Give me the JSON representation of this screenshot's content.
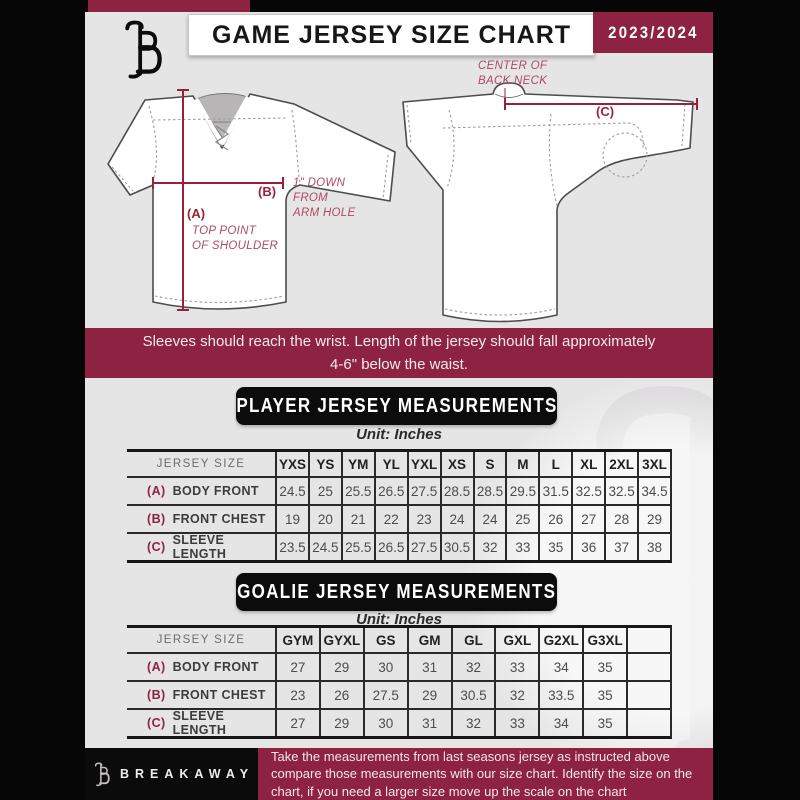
{
  "colors": {
    "accent_maroon": "#8d2242",
    "page_bg": "#e6e5e6",
    "frame_black": "#060606",
    "measure_line": "#9a1f38"
  },
  "header": {
    "title": "GAME JERSEY SIZE CHART",
    "season": "2023/2024",
    "logo": "breakaway-b-logo"
  },
  "diagrams": {
    "front": {
      "label_a": "(A)",
      "note_a": "TOP POINT\nOF SHOULDER",
      "label_b": "(B)",
      "note_b": "1\" DOWN\nFROM\nARM HOLE"
    },
    "back": {
      "label_c": "(C)",
      "note_c": "CENTER OF\nBACK NECK"
    }
  },
  "banner": "Sleeves should reach the wrist. Length of the jersey should fall approximately 4-6\" below the waist.",
  "player": {
    "title": "PLAYER JERSEY MEASUREMENTS",
    "unit": "Unit: Inches",
    "size_header": "JERSEY SIZE",
    "columns": [
      "YXS",
      "YS",
      "YM",
      "YL",
      "YXL",
      "XS",
      "S",
      "M",
      "L",
      "XL",
      "2XL",
      "3XL"
    ],
    "rows": [
      {
        "key": "(A)",
        "label": "BODY FRONT",
        "values": [
          "24.5",
          "25",
          "25.5",
          "26.5",
          "27.5",
          "28.5",
          "28.5",
          "29.5",
          "31.5",
          "32.5",
          "32.5",
          "34.5"
        ]
      },
      {
        "key": "(B)",
        "label": "FRONT CHEST",
        "values": [
          "19",
          "20",
          "21",
          "22",
          "23",
          "24",
          "24",
          "25",
          "26",
          "27",
          "28",
          "29"
        ]
      },
      {
        "key": "(C)",
        "label": "SLEEVE LENGTH",
        "values": [
          "23.5",
          "24.5",
          "25.5",
          "26.5",
          "27.5",
          "30.5",
          "32",
          "33",
          "35",
          "36",
          "37",
          "38"
        ]
      }
    ]
  },
  "goalie": {
    "title": "GOALIE JERSEY MEASUREMENTS",
    "unit": "Unit: Inches",
    "size_header": "JERSEY SIZE",
    "columns": [
      "GYM",
      "GYXL",
      "GS",
      "GM",
      "GL",
      "GXL",
      "G2XL",
      "G3XL",
      ""
    ],
    "rows": [
      {
        "key": "(A)",
        "label": "BODY FRONT",
        "values": [
          "27",
          "29",
          "30",
          "31",
          "32",
          "33",
          "34",
          "35",
          ""
        ]
      },
      {
        "key": "(B)",
        "label": "FRONT CHEST",
        "values": [
          "23",
          "26",
          "27.5",
          "29",
          "30.5",
          "32",
          "33.5",
          "35",
          ""
        ]
      },
      {
        "key": "(C)",
        "label": "SLEEVE LENGTH",
        "values": [
          "27",
          "29",
          "30",
          "31",
          "32",
          "33",
          "34",
          "35",
          ""
        ]
      }
    ]
  },
  "footer": {
    "brand": "BREAKAWAY",
    "note": "Take the measurements from last seasons jersey as instructed above compare those measurements  with our size chart. Identify the size on the chart, if you need a larger size move up the scale on the chart"
  }
}
